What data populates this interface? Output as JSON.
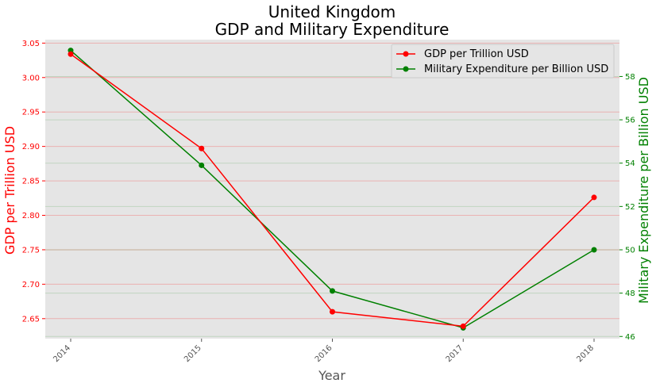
{
  "chart_data": {
    "type": "line",
    "title_lines": [
      "United Kingdom",
      "GDP and Military Expenditure"
    ],
    "xlabel": "Year",
    "x": [
      "2014",
      "2015",
      "2016",
      "2017",
      "2018"
    ],
    "grid": true,
    "legend_position": "top-right",
    "y_left": {
      "label": "GDP per Trillion USD",
      "ticks": [
        "2.65",
        "2.70",
        "2.75",
        "2.80",
        "2.85",
        "2.90",
        "2.95",
        "3.00",
        "3.05"
      ],
      "ylim": [
        2.621,
        3.055
      ]
    },
    "y_right": {
      "label": "Military Expenditure per Billion USD",
      "ticks": [
        "46",
        "48",
        "50",
        "52",
        "54",
        "56",
        "58"
      ],
      "ylim": [
        45.9,
        59.7
      ]
    },
    "series": [
      {
        "name": "GDP per Trillion USD",
        "axis": "left",
        "color": "#ff0000",
        "values": [
          3.034,
          2.897,
          2.66,
          2.639,
          2.826
        ]
      },
      {
        "name": "Military Expenditure per Billion USD",
        "axis": "right",
        "color": "#008000",
        "values": [
          59.2,
          53.9,
          48.1,
          46.4,
          50.0
        ]
      }
    ],
    "colors": {
      "plot_background": "#e5e5e5",
      "left_axis": "#ff0000",
      "right_axis": "#008000"
    }
  }
}
